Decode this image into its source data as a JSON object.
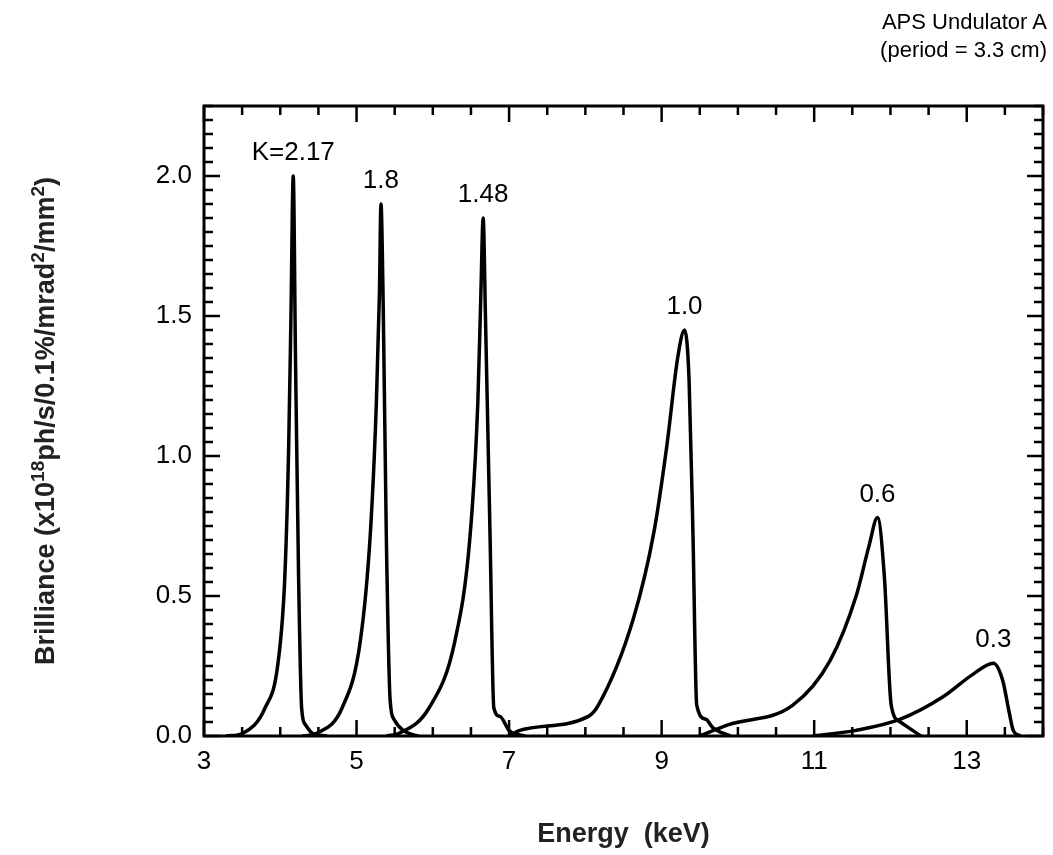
{
  "chart_data": {
    "type": "line",
    "title": "APS Undulator A",
    "subtitle": "(period = 3.3 cm)",
    "xlabel": "Energy  (keV)",
    "ylabel": "Brilliance  (x10$^{18}$ph/s/0.1%/mrad$^{2}$/mm$^{2}$)",
    "series": [
      {
        "color": "#000000",
        "x": [
          3.3,
          3.51,
          3.8,
          3.97,
          4.06,
          4.11,
          4.14,
          4.17,
          4.2,
          4.24,
          4.28,
          4.33,
          4.42,
          4.6
        ],
        "values": [
          0,
          0.01,
          0.1,
          0.26,
          0.57,
          1.03,
          1.5,
          2.0,
          1.34,
          0.57,
          0.1,
          0.04,
          0.01,
          0
        ]
      },
      {
        "color": "#000000",
        "x": [
          4.3,
          4.48,
          4.81,
          5.05,
          5.18,
          5.26,
          5.3,
          5.32,
          5.35,
          5.39,
          5.44,
          5.49,
          5.61,
          5.8
        ],
        "values": [
          0,
          0.01,
          0.1,
          0.34,
          0.72,
          1.19,
          1.58,
          1.9,
          1.53,
          0.72,
          0.13,
          0.06,
          0.02,
          0
        ]
      },
      {
        "color": "#000000",
        "x": [
          5.4,
          5.56,
          5.95,
          6.29,
          6.49,
          6.59,
          6.63,
          6.66,
          6.69,
          6.75,
          6.8,
          6.88,
          7.0,
          7.2
        ],
        "values": [
          0,
          0.01,
          0.1,
          0.34,
          0.72,
          1.19,
          1.58,
          1.85,
          1.5,
          0.72,
          0.1,
          0.07,
          0.02,
          0
        ]
      },
      {
        "color": "#000000",
        "x": [
          7.0,
          7.14,
          8.04,
          8.17,
          8.63,
          8.9,
          9.07,
          9.21,
          9.3,
          9.36,
          9.41,
          9.46,
          9.58,
          9.67,
          9.9
        ],
        "values": [
          0,
          0.02,
          0.07,
          0.11,
          0.42,
          0.73,
          1.04,
          1.35,
          1.45,
          1.27,
          0.73,
          0.11,
          0.06,
          0.03,
          0
        ]
      },
      {
        "color": "#000000",
        "x": [
          9.5,
          9.87,
          10.72,
          11.21,
          11.55,
          11.72,
          11.83,
          11.92,
          12.01,
          12.13,
          12.29,
          12.4
        ],
        "values": [
          0,
          0.04,
          0.11,
          0.27,
          0.5,
          0.68,
          0.78,
          0.57,
          0.11,
          0.05,
          0.02,
          0
        ]
      },
      {
        "color": "#000000",
        "x": [
          11.0,
          11.55,
          12.13,
          12.69,
          13.08,
          13.35,
          13.47,
          13.56,
          13.61,
          13.7
        ],
        "values": [
          0,
          0.02,
          0.06,
          0.14,
          0.22,
          0.26,
          0.2,
          0.08,
          0.02,
          0
        ]
      }
    ],
    "annotations": [
      {
        "text": "K=2.17",
        "x": 4.17,
        "y": 2.0
      },
      {
        "text": "1.8",
        "x": 5.32,
        "y": 1.9
      },
      {
        "text": "1.48",
        "x": 6.66,
        "y": 1.85
      },
      {
        "text": "1.0",
        "x": 9.3,
        "y": 1.45
      },
      {
        "text": "0.6",
        "x": 11.83,
        "y": 0.78
      },
      {
        "text": "0.3",
        "x": 13.35,
        "y": 0.26
      }
    ],
    "xlim": [
      3,
      14
    ],
    "xticks": [
      3,
      {
        "value": 3.5,
        "label": null
      },
      {
        "value": 4,
        "label": null
      },
      {
        "value": 4.5,
        "label": null
      },
      5,
      {
        "value": 5.5,
        "label": null
      },
      {
        "value": 6,
        "label": null
      },
      {
        "value": 6.5,
        "label": null
      },
      7,
      {
        "value": 7.5,
        "label": null
      },
      {
        "value": 8,
        "label": null
      },
      {
        "value": 8.5,
        "label": null
      },
      9,
      {
        "value": 9.5,
        "label": null
      },
      {
        "value": 10,
        "label": null
      },
      {
        "value": 10.5,
        "label": null
      },
      11,
      {
        "value": 11.5,
        "label": null
      },
      {
        "value": 12,
        "label": null
      },
      {
        "value": 12.5,
        "label": null
      },
      13,
      {
        "value": 13.5,
        "label": null
      },
      {
        "value": 14,
        "label": null
      }
    ],
    "ylim": [
      0,
      2.25
    ],
    "yticks": [
      {
        "value": 0,
        "label": "0.0"
      },
      {
        "value": 0.05,
        "label": null
      },
      {
        "value": 0.1,
        "label": null
      },
      {
        "value": 0.15,
        "label": null
      },
      {
        "value": 0.2,
        "label": null
      },
      {
        "value": 0.25,
        "label": null
      },
      {
        "value": 0.3,
        "label": null
      },
      {
        "value": 0.35,
        "label": null
      },
      {
        "value": 0.4,
        "label": null
      },
      {
        "value": 0.45,
        "label": null
      },
      {
        "value": 0.5,
        "label": "0.5"
      },
      {
        "value": 0.55,
        "label": null
      },
      {
        "value": 0.6,
        "label": null
      },
      {
        "value": 0.65,
        "label": null
      },
      {
        "value": 0.7,
        "label": null
      },
      {
        "value": 0.75,
        "label": null
      },
      {
        "value": 0.8,
        "label": null
      },
      {
        "value": 0.85,
        "label": null
      },
      {
        "value": 0.9,
        "label": null
      },
      {
        "value": 0.95,
        "label": null
      },
      {
        "value": 1,
        "label": "1.0"
      },
      {
        "value": 1.05,
        "label": null
      },
      {
        "value": 1.1,
        "label": null
      },
      {
        "value": 1.15,
        "label": null
      },
      {
        "value": 1.2,
        "label": null
      },
      {
        "value": 1.25,
        "label": null
      },
      {
        "value": 1.3,
        "label": null
      },
      {
        "value": 1.35,
        "label": null
      },
      {
        "value": 1.4,
        "label": null
      },
      {
        "value": 1.45,
        "label": null
      },
      {
        "value": 1.5,
        "label": "1.5"
      },
      {
        "value": 1.55,
        "label": null
      },
      {
        "value": 1.6,
        "label": null
      },
      {
        "value": 1.65,
        "label": null
      },
      {
        "value": 1.7,
        "label": null
      },
      {
        "value": 1.75,
        "label": null
      },
      {
        "value": 1.8,
        "label": null
      },
      {
        "value": 1.85,
        "label": null
      },
      {
        "value": 1.9,
        "label": null
      },
      {
        "value": 1.95,
        "label": null
      },
      {
        "value": 2,
        "label": "2.0"
      },
      {
        "value": 2.05,
        "label": null
      },
      {
        "value": 2.1,
        "label": null
      },
      {
        "value": 2.15,
        "label": null
      },
      {
        "value": 2.2,
        "label": null
      },
      {
        "value": 2.25,
        "label": null
      }
    ],
    "grid": false,
    "legend": false,
    "marker": "none",
    "line_style": "solid"
  }
}
